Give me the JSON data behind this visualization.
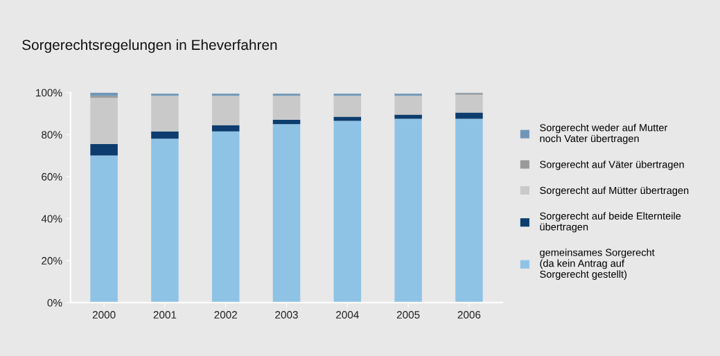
{
  "chart_data": {
    "type": "bar",
    "stacked": true,
    "title": "Sorgerechtsregelungen in Eheverfahren",
    "categories": [
      "2000",
      "2001",
      "2002",
      "2003",
      "2004",
      "2005",
      "2006"
    ],
    "series": [
      {
        "name": "gemeinsames Sorgerecht\n(da kein Antrag auf\nSorgerecht gestellt)",
        "color": "#8ec3e6",
        "values": [
          70,
          78,
          81.5,
          85,
          86.5,
          87.5,
          87.5
        ]
      },
      {
        "name": "Sorgerecht auf beide Elternteile\nübertragen",
        "color": "#0d3d6e",
        "values": [
          5.5,
          3.5,
          3,
          2,
          2,
          2,
          3
        ]
      },
      {
        "name": "Sorgerecht auf Mütter übertragen",
        "color": "#c9c9c9",
        "values": [
          22,
          17,
          14,
          11.5,
          10,
          9,
          8.5
        ]
      },
      {
        "name": "Sorgerecht auf Väter übertragen",
        "color": "#9a9a9a",
        "values": [
          1,
          null,
          null,
          null,
          null,
          null,
          0.7
        ]
      },
      {
        "name": "Sorgerecht weder auf Mutter\nnoch Vater übertragen",
        "color": "#6f96b8",
        "values": [
          1.5,
          1,
          1,
          1,
          1,
          1,
          0.3
        ]
      }
    ],
    "ylim": [
      0,
      100
    ],
    "yticks": [
      {
        "value": 0,
        "label": "0%"
      },
      {
        "value": 20,
        "label": "20%"
      },
      {
        "value": 40,
        "label": "40%"
      },
      {
        "value": 60,
        "label": "60%"
      },
      {
        "value": 80,
        "label": "80%"
      },
      {
        "value": 100,
        "label": "100%"
      }
    ],
    "grid": false,
    "legend": "right"
  }
}
